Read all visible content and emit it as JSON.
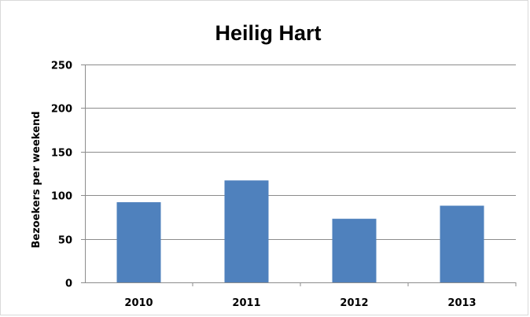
{
  "chart_data": {
    "type": "bar",
    "title": "Heilig Hart",
    "xlabel": "",
    "ylabel": "Bezoekers per weekend",
    "categories": [
      "2010",
      "2011",
      "2012",
      "2013"
    ],
    "values": [
      92,
      117,
      73,
      88
    ],
    "ylim": [
      0,
      250
    ],
    "yticks": [
      "0",
      "50",
      "100",
      "150",
      "200",
      "250"
    ],
    "grid": true,
    "legend": "none",
    "bar_color": "#4f81bd"
  }
}
